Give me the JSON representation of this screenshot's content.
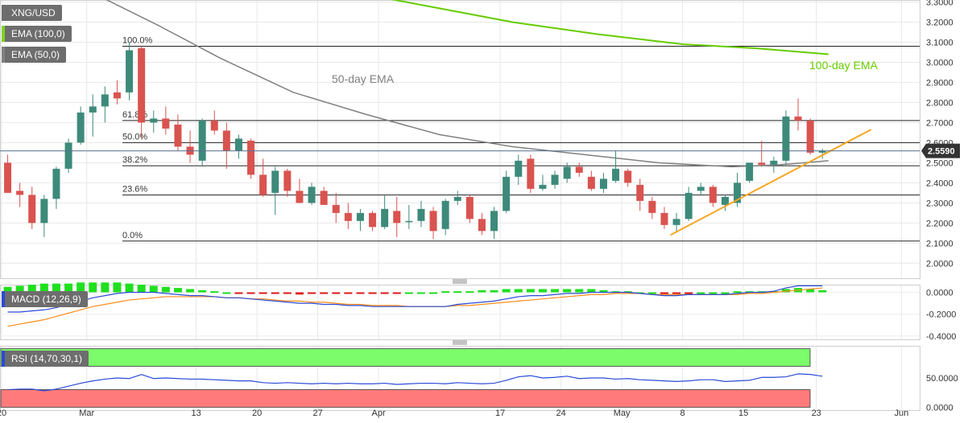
{
  "chart_data": {
    "type": "candlestick",
    "symbol": "XNG/USD",
    "indicators_legend": [
      "EMA (100,0)",
      "EMA (50,0)"
    ],
    "price_axis": {
      "ticks": [
        "3.3000",
        "3.2000",
        "3.1000",
        "3.0000",
        "2.9000",
        "2.8000",
        "2.7000",
        "2.6000",
        "2.5000",
        "2.4000",
        "2.3000",
        "2.2000",
        "2.1000",
        "2.0000"
      ],
      "range": [
        1.925,
        3.31
      ],
      "current_price": "2.5590"
    },
    "x_axis": {
      "labels": [
        {
          "text": "20",
          "i": 0
        },
        {
          "text": "Mar",
          "i": 7
        },
        {
          "text": "13",
          "i": 16
        },
        {
          "text": "20",
          "i": 21
        },
        {
          "text": "27",
          "i": 26
        },
        {
          "text": "Apr",
          "i": 31
        },
        {
          "text": "17",
          "i": 41
        },
        {
          "text": "24",
          "i": 46
        },
        {
          "text": "May",
          "i": 51
        },
        {
          "text": "8",
          "i": 56
        },
        {
          "text": "15",
          "i": 61
        },
        {
          "text": "23",
          "i": 67
        },
        {
          "text": "Jun",
          "i": 74
        }
      ]
    },
    "fibonacci": [
      {
        "label": "100.0%",
        "price": 3.08
      },
      {
        "label": "61.8%",
        "price": 2.71
      },
      {
        "label": "50.0%",
        "price": 2.6
      },
      {
        "label": "38.2%",
        "price": 2.485
      },
      {
        "label": "23.6%",
        "price": 2.34
      },
      {
        "label": "0.0%",
        "price": 2.11
      }
    ],
    "annotations": {
      "ema50_label": "50-day EMA",
      "ema100_label": "100-day EMA"
    },
    "candles": [
      {
        "o": 2.5,
        "h": 2.54,
        "l": 2.35,
        "c": 2.35
      },
      {
        "o": 2.36,
        "h": 2.4,
        "l": 2.28,
        "c": 2.34
      },
      {
        "o": 2.34,
        "h": 2.38,
        "l": 2.17,
        "c": 2.2
      },
      {
        "o": 2.2,
        "h": 2.34,
        "l": 2.13,
        "c": 2.32
      },
      {
        "o": 2.32,
        "h": 2.48,
        "l": 2.27,
        "c": 2.47
      },
      {
        "o": 2.47,
        "h": 2.62,
        "l": 2.45,
        "c": 2.6
      },
      {
        "o": 2.6,
        "h": 2.78,
        "l": 2.59,
        "c": 2.75
      },
      {
        "o": 2.75,
        "h": 2.84,
        "l": 2.63,
        "c": 2.78
      },
      {
        "o": 2.78,
        "h": 2.88,
        "l": 2.7,
        "c": 2.84
      },
      {
        "o": 2.85,
        "h": 2.91,
        "l": 2.79,
        "c": 2.82
      },
      {
        "o": 2.85,
        "h": 3.1,
        "l": 2.81,
        "c": 3.06
      },
      {
        "o": 3.07,
        "h": 3.08,
        "l": 2.62,
        "c": 2.7
      },
      {
        "o": 2.7,
        "h": 2.76,
        "l": 2.65,
        "c": 2.72
      },
      {
        "o": 2.72,
        "h": 2.78,
        "l": 2.64,
        "c": 2.67
      },
      {
        "o": 2.69,
        "h": 2.74,
        "l": 2.56,
        "c": 2.58
      },
      {
        "o": 2.58,
        "h": 2.66,
        "l": 2.5,
        "c": 2.54
      },
      {
        "o": 2.51,
        "h": 2.72,
        "l": 2.48,
        "c": 2.71
      },
      {
        "o": 2.71,
        "h": 2.76,
        "l": 2.64,
        "c": 2.66
      },
      {
        "o": 2.66,
        "h": 2.7,
        "l": 2.47,
        "c": 2.56
      },
      {
        "o": 2.56,
        "h": 2.64,
        "l": 2.52,
        "c": 2.62
      },
      {
        "o": 2.61,
        "h": 2.62,
        "l": 2.42,
        "c": 2.44
      },
      {
        "o": 2.44,
        "h": 2.52,
        "l": 2.33,
        "c": 2.34
      },
      {
        "o": 2.35,
        "h": 2.48,
        "l": 2.24,
        "c": 2.46
      },
      {
        "o": 2.46,
        "h": 2.47,
        "l": 2.33,
        "c": 2.36
      },
      {
        "o": 2.36,
        "h": 2.42,
        "l": 2.3,
        "c": 2.3
      },
      {
        "o": 2.3,
        "h": 2.4,
        "l": 2.29,
        "c": 2.38
      },
      {
        "o": 2.36,
        "h": 2.38,
        "l": 2.29,
        "c": 2.29
      },
      {
        "o": 2.29,
        "h": 2.35,
        "l": 2.2,
        "c": 2.25
      },
      {
        "o": 2.25,
        "h": 2.3,
        "l": 2.17,
        "c": 2.21
      },
      {
        "o": 2.21,
        "h": 2.27,
        "l": 2.16,
        "c": 2.25
      },
      {
        "o": 2.25,
        "h": 2.26,
        "l": 2.16,
        "c": 2.18
      },
      {
        "o": 2.18,
        "h": 2.34,
        "l": 2.17,
        "c": 2.27
      },
      {
        "o": 2.26,
        "h": 2.33,
        "l": 2.13,
        "c": 2.2
      },
      {
        "o": 2.21,
        "h": 2.29,
        "l": 2.17,
        "c": 2.21
      },
      {
        "o": 2.21,
        "h": 2.31,
        "l": 2.18,
        "c": 2.27
      },
      {
        "o": 2.26,
        "h": 2.28,
        "l": 2.12,
        "c": 2.16
      },
      {
        "o": 2.17,
        "h": 2.32,
        "l": 2.14,
        "c": 2.31
      },
      {
        "o": 2.31,
        "h": 2.36,
        "l": 2.29,
        "c": 2.33
      },
      {
        "o": 2.33,
        "h": 2.34,
        "l": 2.2,
        "c": 2.22
      },
      {
        "o": 2.22,
        "h": 2.25,
        "l": 2.14,
        "c": 2.16
      },
      {
        "o": 2.16,
        "h": 2.28,
        "l": 2.12,
        "c": 2.26
      },
      {
        "o": 2.26,
        "h": 2.46,
        "l": 2.25,
        "c": 2.43
      },
      {
        "o": 2.43,
        "h": 2.54,
        "l": 2.39,
        "c": 2.51
      },
      {
        "o": 2.52,
        "h": 2.54,
        "l": 2.35,
        "c": 2.37
      },
      {
        "o": 2.37,
        "h": 2.44,
        "l": 2.36,
        "c": 2.39
      },
      {
        "o": 2.39,
        "h": 2.46,
        "l": 2.37,
        "c": 2.44
      },
      {
        "o": 2.42,
        "h": 2.5,
        "l": 2.4,
        "c": 2.48
      },
      {
        "o": 2.48,
        "h": 2.5,
        "l": 2.43,
        "c": 2.45
      },
      {
        "o": 2.43,
        "h": 2.46,
        "l": 2.36,
        "c": 2.37
      },
      {
        "o": 2.37,
        "h": 2.45,
        "l": 2.35,
        "c": 2.42
      },
      {
        "o": 2.41,
        "h": 2.56,
        "l": 2.4,
        "c": 2.47
      },
      {
        "o": 2.46,
        "h": 2.47,
        "l": 2.38,
        "c": 2.4
      },
      {
        "o": 2.39,
        "h": 2.42,
        "l": 2.26,
        "c": 2.31
      },
      {
        "o": 2.31,
        "h": 2.33,
        "l": 2.22,
        "c": 2.25
      },
      {
        "o": 2.25,
        "h": 2.28,
        "l": 2.17,
        "c": 2.19
      },
      {
        "o": 2.19,
        "h": 2.25,
        "l": 2.16,
        "c": 2.22
      },
      {
        "o": 2.22,
        "h": 2.38,
        "l": 2.21,
        "c": 2.35
      },
      {
        "o": 2.36,
        "h": 2.4,
        "l": 2.34,
        "c": 2.38
      },
      {
        "o": 2.38,
        "h": 2.39,
        "l": 2.28,
        "c": 2.3
      },
      {
        "o": 2.29,
        "h": 2.34,
        "l": 2.26,
        "c": 2.33
      },
      {
        "o": 2.3,
        "h": 2.45,
        "l": 2.28,
        "c": 2.4
      },
      {
        "o": 2.41,
        "h": 2.5,
        "l": 2.4,
        "c": 2.5
      },
      {
        "o": 2.5,
        "h": 2.61,
        "l": 2.48,
        "c": 2.49
      },
      {
        "o": 2.49,
        "h": 2.53,
        "l": 2.45,
        "c": 2.51
      },
      {
        "o": 2.51,
        "h": 2.76,
        "l": 2.49,
        "c": 2.73
      },
      {
        "o": 2.73,
        "h": 2.82,
        "l": 2.66,
        "c": 2.71
      },
      {
        "o": 2.71,
        "h": 2.72,
        "l": 2.54,
        "c": 2.55
      },
      {
        "o": 2.55,
        "h": 2.57,
        "l": 2.52,
        "c": 2.56
      }
    ],
    "ema100": [
      {
        "i": 28,
        "v": 3.36
      },
      {
        "i": 35,
        "v": 3.28
      },
      {
        "i": 42,
        "v": 3.2
      },
      {
        "i": 49,
        "v": 3.14
      },
      {
        "i": 56,
        "v": 3.09
      },
      {
        "i": 62,
        "v": 3.07
      },
      {
        "i": 68,
        "v": 3.04
      }
    ],
    "ema50": [
      {
        "i": 0,
        "v": 3.38
      },
      {
        "i": 8,
        "v": 3.33
      },
      {
        "i": 13,
        "v": 3.18
      },
      {
        "i": 18,
        "v": 3.02
      },
      {
        "i": 24,
        "v": 2.85
      },
      {
        "i": 30,
        "v": 2.74
      },
      {
        "i": 36,
        "v": 2.64
      },
      {
        "i": 42,
        "v": 2.58
      },
      {
        "i": 48,
        "v": 2.54
      },
      {
        "i": 54,
        "v": 2.5
      },
      {
        "i": 60,
        "v": 2.48
      },
      {
        "i": 64,
        "v": 2.49
      },
      {
        "i": 68,
        "v": 2.51
      }
    ],
    "trendline": [
      {
        "i": 55,
        "v": 2.14
      },
      {
        "i": 71.5,
        "v": 2.665
      }
    ],
    "macd": {
      "label": "MACD (12,26,9)",
      "ticks": [
        "0.0000",
        "-0.2000",
        "-0.4000"
      ],
      "range": [
        -0.43,
        0.07
      ],
      "macd": [
        -0.18,
        -0.18,
        -0.17,
        -0.16,
        -0.14,
        -0.11,
        -0.08,
        -0.05,
        -0.03,
        -0.01,
        0.0,
        0.0,
        0.0,
        -0.01,
        -0.02,
        -0.03,
        -0.03,
        -0.04,
        -0.05,
        -0.05,
        -0.06,
        -0.07,
        -0.08,
        -0.09,
        -0.1,
        -0.1,
        -0.11,
        -0.11,
        -0.12,
        -0.12,
        -0.13,
        -0.13,
        -0.13,
        -0.13,
        -0.13,
        -0.13,
        -0.13,
        -0.11,
        -0.1,
        -0.09,
        -0.08,
        -0.06,
        -0.04,
        -0.03,
        -0.03,
        -0.02,
        -0.01,
        -0.01,
        0.0,
        0.0,
        0.0,
        0.0,
        -0.01,
        -0.02,
        -0.03,
        -0.03,
        -0.02,
        -0.02,
        -0.02,
        -0.02,
        -0.01,
        0.0,
        0.0,
        0.01,
        0.04,
        0.06,
        0.06,
        0.06
      ],
      "signal": [
        -0.31,
        -0.29,
        -0.27,
        -0.25,
        -0.22,
        -0.19,
        -0.16,
        -0.13,
        -0.11,
        -0.09,
        -0.07,
        -0.06,
        -0.05,
        -0.04,
        -0.04,
        -0.04,
        -0.04,
        -0.04,
        -0.05,
        -0.05,
        -0.06,
        -0.06,
        -0.07,
        -0.08,
        -0.08,
        -0.09,
        -0.09,
        -0.1,
        -0.11,
        -0.11,
        -0.12,
        -0.12,
        -0.12,
        -0.13,
        -0.13,
        -0.13,
        -0.13,
        -0.12,
        -0.12,
        -0.11,
        -0.1,
        -0.09,
        -0.08,
        -0.07,
        -0.06,
        -0.05,
        -0.04,
        -0.03,
        -0.02,
        -0.02,
        -0.01,
        -0.01,
        -0.01,
        -0.02,
        -0.02,
        -0.02,
        -0.02,
        -0.02,
        -0.02,
        -0.02,
        -0.02,
        -0.01,
        -0.01,
        0.0,
        0.01,
        0.02,
        0.03,
        0.04
      ],
      "hist": [
        0.05,
        0.06,
        0.07,
        0.08,
        0.08,
        0.08,
        0.09,
        0.09,
        0.09,
        0.09,
        0.08,
        0.07,
        0.06,
        0.05,
        0.04,
        0.03,
        0.02,
        0.01,
        0.0,
        -0.01,
        -0.01,
        -0.01,
        -0.01,
        -0.01,
        -0.02,
        -0.01,
        -0.01,
        -0.01,
        -0.01,
        -0.01,
        -0.01,
        -0.01,
        -0.01,
        0.0,
        0.0,
        0.0,
        0.01,
        0.01,
        0.01,
        0.02,
        0.02,
        0.03,
        0.03,
        0.03,
        0.03,
        0.03,
        0.03,
        0.03,
        0.03,
        0.02,
        0.01,
        0.01,
        0.0,
        0.0,
        -0.01,
        -0.01,
        -0.01,
        0.0,
        0.0,
        0.0,
        0.01,
        0.01,
        0.01,
        0.01,
        0.03,
        0.04,
        0.03,
        0.02
      ]
    },
    "rsi": {
      "label": "RSI (14,70,30,1)",
      "ticks": [
        "50.0000",
        "0.0000"
      ],
      "range": [
        -5,
        105
      ],
      "overbought": 70,
      "oversold": 30,
      "values": [
        30,
        31,
        31,
        28,
        31,
        36,
        41,
        45,
        48,
        50,
        49,
        56,
        49,
        50,
        49,
        48,
        48,
        47,
        46,
        45,
        45,
        42,
        41,
        42,
        41,
        40,
        41,
        40,
        41,
        40,
        40,
        41,
        39,
        40,
        41,
        41,
        40,
        42,
        41,
        40,
        41,
        46,
        52,
        54,
        50,
        51,
        53,
        49,
        50,
        50,
        48,
        49,
        47,
        46,
        45,
        44,
        45,
        47,
        47,
        44,
        45,
        46,
        51,
        51,
        52,
        57,
        56,
        53
      ]
    }
  }
}
